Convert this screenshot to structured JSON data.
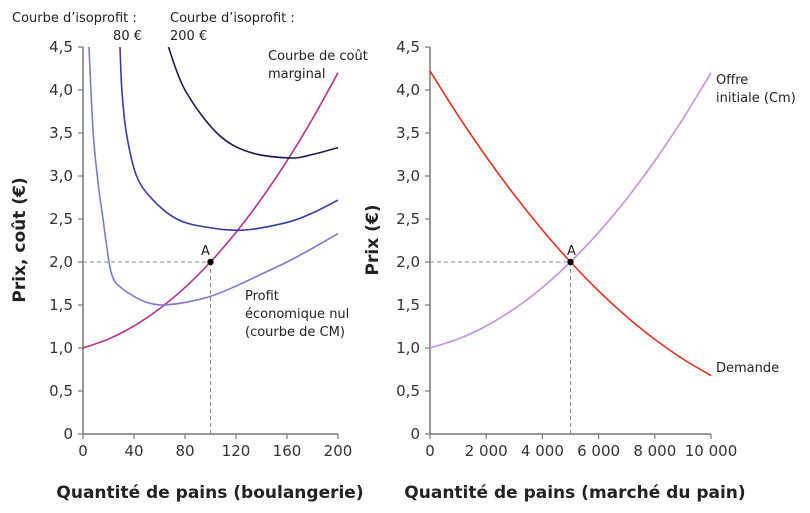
{
  "chart_data": [
    {
      "type": "line",
      "xlabel": "Quantité de pains (boulangerie)",
      "ylabel": "Prix, coût (€)",
      "xlim": [
        0,
        200
      ],
      "ylim": [
        0,
        4.5
      ],
      "xticks": [
        0,
        40,
        80,
        120,
        160,
        200
      ],
      "xtick_labels": [
        "0",
        "40",
        "80",
        "120",
        "160",
        "200"
      ],
      "yticks": [
        0,
        0.5,
        1,
        1.5,
        2,
        2.5,
        3,
        3.5,
        4,
        4.5
      ],
      "ytick_labels": [
        "0",
        "0,5",
        "1,0",
        "1,5",
        "2,0",
        "2,5",
        "3,0",
        "3,5",
        "4,0",
        "4,5"
      ],
      "grid": false,
      "series": [
        {
          "name": "Courbe de coût marginal",
          "color": "#b0308f",
          "points": [
            [
              0,
              1
            ],
            [
              20,
              1.104
            ],
            [
              40,
              1.256
            ],
            [
              60,
              1.456
            ],
            [
              80,
              1.704
            ],
            [
              100,
              2.0
            ],
            [
              120,
              2.344
            ],
            [
              140,
              2.736
            ],
            [
              160,
              3.176
            ],
            [
              180,
              3.664
            ],
            [
              200,
              4.2
            ]
          ]
        },
        {
          "name": "Profit économique nul (courbe de CM)",
          "color": "#7b7bc9",
          "points": [
            [
              4.7,
              4.5
            ],
            [
              8,
              3.5
            ],
            [
              12,
              2.9
            ],
            [
              15.7,
              2.5
            ],
            [
              20.4,
              2.0
            ],
            [
              24,
              1.8
            ],
            [
              30,
              1.7
            ],
            [
              40,
              1.6
            ],
            [
              50,
              1.53
            ],
            [
              62,
              1.5
            ],
            [
              80,
              1.53
            ],
            [
              100,
              1.6
            ],
            [
              120,
              1.72
            ],
            [
              140,
              1.86
            ],
            [
              160,
              2.0
            ],
            [
              180,
              2.16
            ],
            [
              200,
              2.33
            ]
          ]
        },
        {
          "name": "Courbe d’isoprofit : 80 €",
          "color": "#3b3b9c",
          "points": [
            [
              29,
              4.5
            ],
            [
              30.5,
              4.0
            ],
            [
              34,
              3.5
            ],
            [
              42,
              3.0
            ],
            [
              55,
              2.72
            ],
            [
              73.5,
              2.5
            ],
            [
              95,
              2.41
            ],
            [
              125,
              2.37
            ],
            [
              160,
              2.46
            ],
            [
              180,
              2.57
            ],
            [
              200,
              2.72
            ]
          ]
        },
        {
          "name": "Courbe d’isoprofit : 200 €",
          "color": "#1c1c48",
          "points": [
            [
              67,
              4.5
            ],
            [
              80,
              4.0
            ],
            [
              105,
              3.5
            ],
            [
              130,
              3.28
            ],
            [
              162,
              3.21
            ],
            [
              180,
              3.25
            ],
            [
              200,
              3.33
            ]
          ]
        }
      ],
      "annotations": [
        {
          "label": "A",
          "x": 100,
          "y": 2.0,
          "dashed_guides": true
        }
      ],
      "labels": {
        "iso80_line1": "Courbe d’isoprofit :",
        "iso80_line2": "80 €",
        "iso200_line1": "Courbe d’isoprofit :",
        "iso200_line2": "200 €",
        "mc_line1": "Courbe de coût",
        "mc_line2": "marginal",
        "ac_line1": "Profit",
        "ac_line2": "économique nul",
        "ac_line3": "(courbe de CM)",
        "point": "A"
      }
    },
    {
      "type": "line",
      "xlabel": "Quantité de pains (marché du pain)",
      "ylabel": "Prix (€)",
      "xlim": [
        0,
        10000
      ],
      "ylim": [
        0,
        4.5
      ],
      "xticks": [
        0,
        2000,
        4000,
        6000,
        8000,
        10000
      ],
      "xtick_labels": [
        "0",
        "2 000",
        "4 000",
        "6 000",
        "8 000",
        "10 000"
      ],
      "yticks": [
        0,
        0.5,
        1,
        1.5,
        2,
        2.5,
        3,
        3.5,
        4,
        4.5
      ],
      "ytick_labels": [
        "0",
        "0,5",
        "1,0",
        "1,5",
        "2,0",
        "2,5",
        "3,0",
        "3,5",
        "4,0",
        "4,5"
      ],
      "grid": false,
      "series": [
        {
          "name": "Offre initiale (Cm)",
          "color": "#c393d3",
          "points": [
            [
              0,
              1
            ],
            [
              1000,
              1.104
            ],
            [
              2000,
              1.256
            ],
            [
              3000,
              1.456
            ],
            [
              4000,
              1.704
            ],
            [
              5000,
              2.0
            ],
            [
              6000,
              2.344
            ],
            [
              7000,
              2.736
            ],
            [
              8000,
              3.176
            ],
            [
              9000,
              3.664
            ],
            [
              10000,
              4.2
            ]
          ]
        },
        {
          "name": "Demande",
          "color": "#e0301e",
          "points": [
            [
              0,
              4.22
            ],
            [
              1000,
              3.704
            ],
            [
              2000,
              3.224
            ],
            [
              3000,
              2.78
            ],
            [
              4000,
              2.372
            ],
            [
              5000,
              2.0
            ],
            [
              6000,
              1.664
            ],
            [
              7000,
              1.364
            ],
            [
              8000,
              1.1
            ],
            [
              9000,
              0.872
            ],
            [
              10000,
              0.68
            ]
          ]
        }
      ],
      "annotations": [
        {
          "label": "A",
          "x": 5000,
          "y": 2.0,
          "dashed_guides": true
        }
      ],
      "labels": {
        "supply_line1": "Offre",
        "supply_line2": "initiale (Cm)",
        "demand": "Demande",
        "point": "A"
      }
    }
  ]
}
